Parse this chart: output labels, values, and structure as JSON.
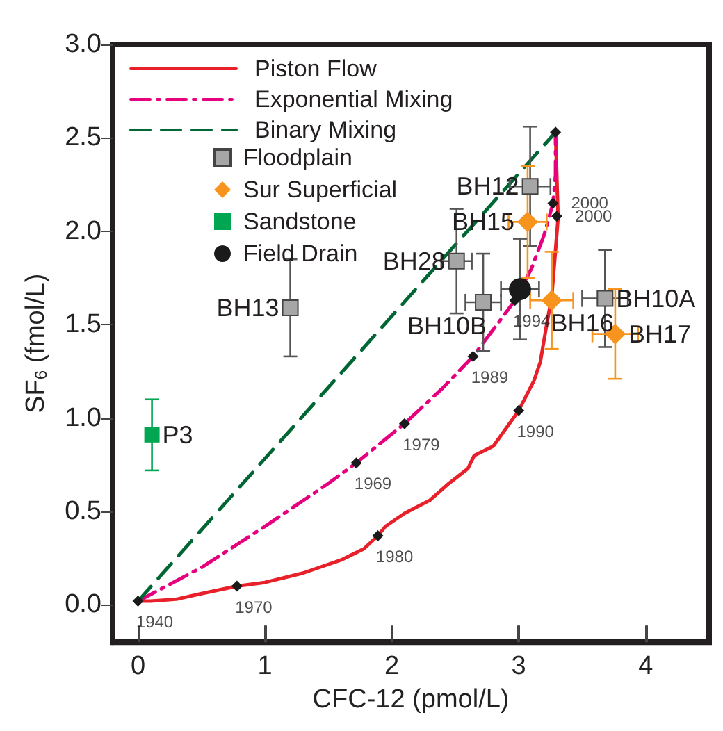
{
  "chart_data": {
    "type": "line",
    "xlabel": "CFC-12 (pmol/L)",
    "ylabel": "SF$_{6}$ (fmol/L)",
    "xlim": [
      -0.2,
      4.5
    ],
    "ylim": [
      -0.2,
      3.0
    ],
    "xticks": [
      0,
      1,
      2,
      3,
      4
    ],
    "yticks": [
      {
        "value": 0,
        "label": "0.0"
      },
      0.5,
      {
        "value": 1,
        "label": "1.0"
      },
      1.5,
      {
        "value": 2,
        "label": "2.0"
      },
      2.5,
      {
        "value": 3,
        "label": "3.0"
      }
    ],
    "grid": false,
    "legend": "top left",
    "annotations": [
      {
        "text": "1940",
        "x": 0,
        "y": 0.02
      },
      {
        "text": "1970",
        "x": 0.78,
        "y": 0.1
      },
      {
        "text": "1980",
        "x": 1.89,
        "y": 0.37
      },
      {
        "text": "1990",
        "x": 3.0,
        "y": 1.04
      },
      {
        "text": "2000",
        "x": 3.3,
        "y": 2.08
      },
      {
        "text": "1969",
        "x": 1.72,
        "y": 0.76
      },
      {
        "text": "1979",
        "x": 2.1,
        "y": 0.97
      },
      {
        "text": "1989",
        "x": 2.64,
        "y": 1.33
      },
      {
        "text": "1994",
        "x": 2.97,
        "y": 1.63
      },
      {
        "text": "2000",
        "x": 3.27,
        "y": 2.15
      }
    ],
    "series": [
      {
        "name": "Piston Flow",
        "color": "#e8202a",
        "line_style": "solid",
        "marker": "none",
        "x": [
          0,
          0.1,
          0.3,
          0.5,
          0.78,
          1.0,
          1.3,
          1.6,
          1.78,
          1.89,
          1.95,
          2.1,
          2.3,
          2.45,
          2.6,
          2.65,
          2.8,
          3.0,
          3.12,
          3.17,
          3.22,
          3.26,
          3.29,
          3.31,
          3.3,
          3.29
        ],
        "values": [
          0.02,
          0.02,
          0.03,
          0.06,
          0.1,
          0.12,
          0.17,
          0.24,
          0.3,
          0.37,
          0.42,
          0.49,
          0.56,
          0.65,
          0.73,
          0.8,
          0.85,
          1.04,
          1.2,
          1.3,
          1.5,
          1.65,
          1.9,
          2.07,
          2.3,
          2.53
        ]
      },
      {
        "name": "Exponential Mixing",
        "color": "#e6007e",
        "line_style": "dashdot",
        "marker": "none",
        "x": [
          0,
          0.5,
          1.0,
          1.5,
          1.72,
          2.1,
          2.4,
          2.64,
          2.85,
          2.97,
          3.1,
          3.2,
          3.27,
          3.29,
          3.29
        ],
        "values": [
          0.02,
          0.2,
          0.42,
          0.65,
          0.76,
          0.97,
          1.16,
          1.33,
          1.52,
          1.63,
          1.8,
          1.98,
          2.15,
          2.3,
          2.53
        ]
      },
      {
        "name": "Binary Mixing",
        "color": "#006633",
        "line_style": "dashed",
        "marker": "none",
        "x": [
          0,
          3.29
        ],
        "values": [
          0.02,
          2.53
        ]
      },
      {
        "type": "scatter",
        "color": "#1a1a1a",
        "marker": "diamond",
        "x": [
          0,
          0.78,
          1.89,
          3.0,
          3.3,
          1.72,
          2.1,
          2.64,
          2.97,
          3.27,
          3.29
        ],
        "values": [
          0.02,
          0.1,
          0.37,
          1.04,
          2.08,
          0.76,
          0.97,
          1.33,
          1.63,
          2.15,
          2.53
        ]
      },
      {
        "type": "scatter",
        "name": "Floodplain",
        "color": "#a6a6a6",
        "marker": "square",
        "x": [
          3.09,
          2.51,
          2.72,
          3.68,
          1.2
        ],
        "values": [
          2.24,
          1.84,
          1.62,
          1.64,
          1.59
        ],
        "errors": [
          0.32,
          0.28,
          0.26,
          0.26,
          0.26
        ],
        "xerrors": [
          0.16,
          0.12,
          0.14,
          0.18,
          null
        ],
        "value_labels": [
          "BH12",
          "BH28",
          "BH10B",
          "BH10A",
          "BH13"
        ]
      },
      {
        "type": "scatter",
        "name": "Sur Superficial",
        "color": "#f7941d",
        "marker": "diamond",
        "x": [
          3.07,
          3.26,
          3.76
        ],
        "values": [
          2.05,
          1.63,
          1.45
        ],
        "errors": [
          0.3,
          0.26,
          0.24
        ],
        "xerrors": [
          0.15,
          0.17,
          0.18
        ],
        "value_labels": [
          "BH15",
          "BH16",
          "BH17"
        ]
      },
      {
        "type": "scatter",
        "name": "Sandstone",
        "color": "#00a651",
        "marker": "square",
        "x": [
          0.11
        ],
        "values": [
          0.91
        ],
        "errors": [
          0.19
        ],
        "value_labels": [
          "P3"
        ]
      },
      {
        "type": "scatter",
        "name": "Field Drain",
        "color": "#1a1a1a",
        "marker": "circle",
        "x": [
          3.01
        ],
        "values": [
          1.69
        ],
        "errors": [
          0.27
        ],
        "xerrors": [
          0.15
        ]
      }
    ]
  }
}
